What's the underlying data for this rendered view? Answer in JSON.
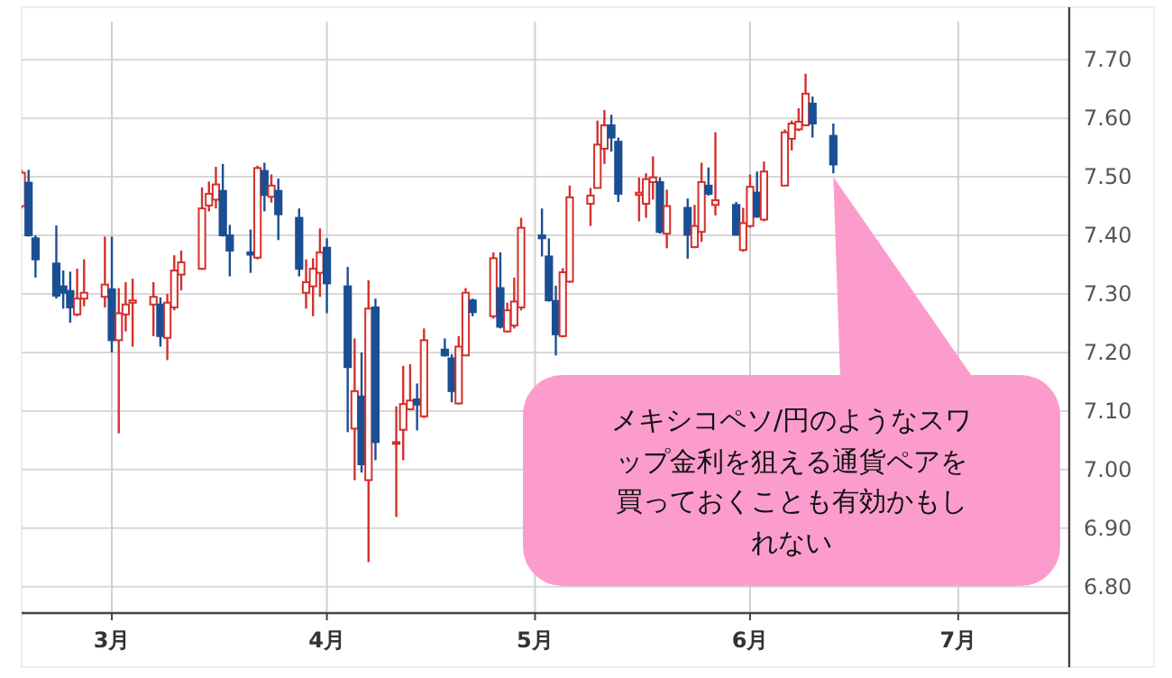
{
  "chart_data": {
    "type": "candlestick",
    "x": [
      "--02-16",
      "--02-17",
      "--02-18",
      "--02-21",
      "--02-22",
      "--02-23",
      "--02-24",
      "--02-25",
      "--02-28",
      "--03-01",
      "--03-02",
      "--03-03",
      "--03-04",
      "--03-07",
      "--03-08",
      "--03-09",
      "--03-10",
      "--03-11",
      "--03-14",
      "--03-15",
      "--03-16",
      "--03-17",
      "--03-18",
      "--03-21",
      "--03-22",
      "--03-23",
      "--03-24",
      "--03-25",
      "--03-28",
      "--03-29",
      "--03-30",
      "--03-31",
      "--04-01",
      "--04-04",
      "--04-05",
      "--04-06",
      "--04-07",
      "--04-08",
      "--04-11",
      "--04-12",
      "--04-13",
      "--04-14",
      "--04-15",
      "--04-18",
      "--04-19",
      "--04-20",
      "--04-21",
      "--04-22",
      "--04-25",
      "--04-26",
      "--04-27",
      "--04-28",
      "--04-29",
      "--05-02",
      "--05-03",
      "--05-04",
      "--05-05",
      "--05-06",
      "--05-09",
      "--05-10",
      "--05-11",
      "--05-12",
      "--05-13",
      "--05-16",
      "--05-17",
      "--05-18",
      "--05-19",
      "--05-20",
      "--05-23",
      "--05-24",
      "--05-25",
      "--05-26",
      "--05-27",
      "--05-30",
      "--05-31",
      "--06-01",
      "--06-02",
      "--06-03",
      "--06-06",
      "--06-07",
      "--06-08",
      "--06-09",
      "--06-10",
      "--06-13"
    ],
    "ohlc": [
      [
        7.45,
        7.512,
        7.446,
        7.507
      ],
      [
        7.49,
        7.512,
        7.398,
        7.4
      ],
      [
        7.395,
        7.4,
        7.328,
        7.359
      ],
      [
        7.352,
        7.417,
        7.292,
        7.297
      ],
      [
        7.313,
        7.34,
        7.275,
        7.302
      ],
      [
        7.305,
        7.338,
        7.251,
        7.277
      ],
      [
        7.265,
        7.343,
        7.262,
        7.292
      ],
      [
        7.292,
        7.359,
        7.279,
        7.302
      ],
      [
        7.295,
        7.398,
        7.277,
        7.316
      ],
      [
        7.308,
        7.398,
        7.2,
        7.221
      ],
      [
        7.221,
        7.31,
        7.062,
        7.267
      ],
      [
        7.265,
        7.32,
        7.236,
        7.282
      ],
      [
        7.285,
        7.326,
        7.21,
        7.289
      ],
      [
        7.282,
        7.32,
        7.228,
        7.295
      ],
      [
        7.282,
        7.294,
        7.21,
        7.228
      ],
      [
        7.225,
        7.3,
        7.187,
        7.285
      ],
      [
        7.277,
        7.366,
        7.272,
        7.34
      ],
      [
        7.333,
        7.374,
        7.306,
        7.354
      ],
      [
        7.343,
        7.482,
        7.341,
        7.446
      ],
      [
        7.451,
        7.492,
        7.441,
        7.471
      ],
      [
        7.461,
        7.517,
        7.446,
        7.487
      ],
      [
        7.476,
        7.522,
        7.398,
        7.4
      ],
      [
        7.4,
        7.418,
        7.33,
        7.374
      ],
      [
        7.371,
        7.41,
        7.336,
        7.367
      ],
      [
        7.362,
        7.519,
        7.359,
        7.515
      ],
      [
        7.51,
        7.524,
        7.441,
        7.469
      ],
      [
        7.466,
        7.504,
        7.456,
        7.485
      ],
      [
        7.476,
        7.497,
        7.392,
        7.436
      ],
      [
        7.43,
        7.446,
        7.33,
        7.343
      ],
      [
        7.302,
        7.359,
        7.275,
        7.32
      ],
      [
        7.313,
        7.361,
        7.262,
        7.343
      ],
      [
        7.336,
        7.412,
        7.295,
        7.371
      ],
      [
        7.379,
        7.395,
        7.267,
        7.318
      ],
      [
        7.313,
        7.346,
        7.064,
        7.175
      ],
      [
        7.07,
        7.224,
        6.982,
        7.134
      ],
      [
        7.125,
        7.2,
        6.995,
        7.009
      ],
      [
        6.982,
        7.323,
        6.842,
        7.275
      ],
      [
        7.277,
        7.292,
        7.016,
        7.047
      ],
      [
        7.045,
        7.108,
        6.919,
        7.047
      ],
      [
        7.068,
        7.177,
        7.016,
        7.112
      ],
      [
        7.103,
        7.18,
        7.103,
        7.118
      ],
      [
        7.12,
        7.147,
        7.067,
        7.111
      ],
      [
        7.091,
        7.241,
        7.088,
        7.221
      ],
      [
        7.205,
        7.224,
        7.193,
        7.195
      ],
      [
        7.19,
        7.197,
        7.115,
        7.134
      ],
      [
        7.113,
        7.228,
        7.111,
        7.21
      ],
      [
        7.195,
        7.31,
        7.195,
        7.302
      ],
      [
        7.289,
        7.292,
        7.262,
        7.269
      ],
      [
        7.262,
        7.371,
        7.258,
        7.361
      ],
      [
        7.31,
        7.371,
        7.241,
        7.244
      ],
      [
        7.236,
        7.285,
        7.234,
        7.272
      ],
      [
        7.246,
        7.328,
        7.241,
        7.287
      ],
      [
        7.277,
        7.43,
        7.272,
        7.413
      ],
      [
        7.4,
        7.446,
        7.364,
        7.395
      ],
      [
        7.364,
        7.395,
        7.287,
        7.289
      ],
      [
        7.288,
        7.314,
        7.195,
        7.231
      ],
      [
        7.228,
        7.344,
        7.226,
        7.337
      ],
      [
        7.321,
        7.485,
        7.319,
        7.465
      ],
      [
        7.454,
        7.481,
        7.416,
        7.468
      ],
      [
        7.481,
        7.596,
        7.481,
        7.555
      ],
      [
        7.548,
        7.614,
        7.522,
        7.588
      ],
      [
        7.588,
        7.606,
        7.543,
        7.567
      ],
      [
        7.56,
        7.567,
        7.457,
        7.471
      ],
      [
        7.469,
        7.499,
        7.424,
        7.473
      ],
      [
        7.454,
        7.506,
        7.43,
        7.496
      ],
      [
        7.491,
        7.535,
        7.461,
        7.499
      ],
      [
        7.491,
        7.499,
        7.403,
        7.406
      ],
      [
        7.403,
        7.478,
        7.378,
        7.45
      ],
      [
        7.447,
        7.463,
        7.36,
        7.401
      ],
      [
        7.38,
        7.452,
        7.378,
        7.416
      ],
      [
        7.406,
        7.524,
        7.389,
        7.491
      ],
      [
        7.485,
        7.516,
        7.468,
        7.471
      ],
      [
        7.452,
        7.576,
        7.434,
        7.46
      ],
      [
        7.452,
        7.457,
        7.401,
        7.401
      ],
      [
        7.375,
        7.447,
        7.372,
        7.421
      ],
      [
        7.416,
        7.504,
        7.413,
        7.483
      ],
      [
        7.473,
        7.509,
        7.43,
        7.432
      ],
      [
        7.427,
        7.526,
        7.424,
        7.509
      ],
      [
        7.485,
        7.581,
        7.485,
        7.576
      ],
      [
        7.565,
        7.596,
        7.545,
        7.591
      ],
      [
        7.581,
        7.617,
        7.578,
        7.594
      ],
      [
        7.588,
        7.676,
        7.588,
        7.642
      ],
      [
        7.625,
        7.637,
        7.567,
        7.591
      ],
      [
        7.57,
        7.591,
        7.506,
        7.521
      ]
    ],
    "colors": [
      "#d4302b",
      "#1b4f93",
      "#1b4f93",
      "#1b4f93",
      "#1b4f93",
      "#1b4f93",
      "#d4302b",
      "#d4302b",
      "#d4302b",
      "#1b4f93",
      "#d4302b",
      "#d4302b",
      "#d4302b",
      "#d4302b",
      "#1b4f93",
      "#d4302b",
      "#d4302b",
      "#d4302b",
      "#d4302b",
      "#d4302b",
      "#d4302b",
      "#1b4f93",
      "#1b4f93",
      "#1b4f93",
      "#d4302b",
      "#1b4f93",
      "#d4302b",
      "#1b4f93",
      "#1b4f93",
      "#d4302b",
      "#d4302b",
      "#d4302b",
      "#1b4f93",
      "#1b4f93",
      "#d4302b",
      "#1b4f93",
      "#d4302b",
      "#1b4f93",
      "#d4302b",
      "#d4302b",
      "#d4302b",
      "#1b4f93",
      "#d4302b",
      "#1b4f93",
      "#1b4f93",
      "#d4302b",
      "#d4302b",
      "#1b4f93",
      "#d4302b",
      "#1b4f93",
      "#d4302b",
      "#d4302b",
      "#d4302b",
      "#1b4f93",
      "#1b4f93",
      "#1b4f93",
      "#d4302b",
      "#d4302b",
      "#d4302b",
      "#d4302b",
      "#d4302b",
      "#1b4f93",
      "#1b4f93",
      "#d4302b",
      "#d4302b",
      "#d4302b",
      "#1b4f93",
      "#d4302b",
      "#1b4f93",
      "#d4302b",
      "#d4302b",
      "#1b4f93",
      "#d4302b",
      "#1b4f93",
      "#d4302b",
      "#d4302b",
      "#1b4f93",
      "#d4302b",
      "#d4302b",
      "#d4302b",
      "#d4302b",
      "#d4302b",
      "#1b4f93",
      "#1b4f93"
    ],
    "xlim": [
      "--02-16",
      "--07-17"
    ],
    "xticks": [
      {
        "value": "--03-01",
        "label": "3月"
      },
      {
        "value": "--04-01",
        "label": "4月"
      },
      {
        "value": "--05-01",
        "label": "5月"
      },
      {
        "value": "--06-01",
        "label": "6月"
      },
      {
        "value": "--07-01",
        "label": "7月"
      }
    ],
    "ylim": [
      6.755,
      7.765
    ],
    "yticks": [
      {
        "value": 6.8,
        "label": "6.80"
      },
      {
        "value": 6.9,
        "label": "6.90"
      },
      {
        "value": 7.0,
        "label": "7.00"
      },
      {
        "value": 7.1,
        "label": "7.10"
      },
      {
        "value": 7.2,
        "label": "7.20"
      },
      {
        "value": 7.3,
        "label": "7.30"
      },
      {
        "value": 7.4,
        "label": "7.40"
      },
      {
        "value": 7.5,
        "label": "7.50"
      },
      {
        "value": 7.6,
        "label": "7.60"
      },
      {
        "value": 7.7,
        "label": "7.70"
      }
    ],
    "grid": true,
    "annotations": [
      "メキシコペソ/円のようなスワップ金利を狙える通貨ペアを買っておくことも有効かもしれない"
    ]
  }
}
